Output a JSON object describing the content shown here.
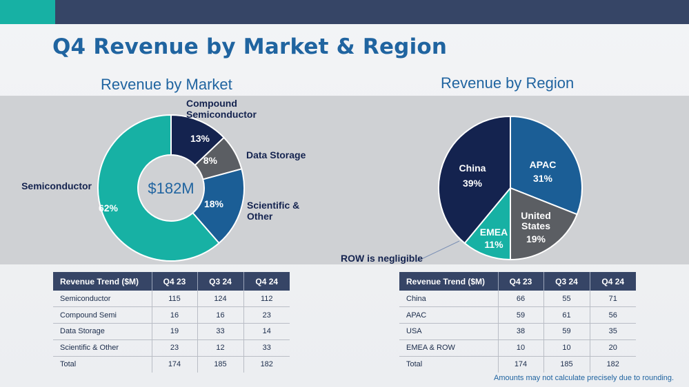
{
  "slide": {
    "title": "Q4 Revenue by Market & Region",
    "footnote": "Amounts may not calculate precisely due to rounding."
  },
  "chart_data": [
    {
      "type": "pie",
      "variant": "donut",
      "title": "Revenue by Market",
      "center_label": "$182M",
      "slices": [
        {
          "label": "Compound Semiconductor",
          "value": 13,
          "display": "13%",
          "color": "#14234f"
        },
        {
          "label": "Data Storage",
          "value": 8,
          "display": "8%",
          "color": "#5b5e63"
        },
        {
          "label": "Scientific & Other",
          "value": 18,
          "display": "18%",
          "color": "#1b5e96"
        },
        {
          "label": "Semiconductor",
          "value": 62,
          "display": "62%",
          "color": "#17b1a4"
        }
      ]
    },
    {
      "type": "pie",
      "title": "Revenue by Region",
      "slices": [
        {
          "label": "APAC",
          "value": 31,
          "display": "31%",
          "color": "#1b5e96"
        },
        {
          "label": "United States",
          "value": 19,
          "display": "19%",
          "color": "#5b5e63"
        },
        {
          "label": "EMEA",
          "value": 11,
          "display": "11%",
          "color": "#17b1a4"
        },
        {
          "label": "China",
          "value": 39,
          "display": "39%",
          "color": "#14234f"
        }
      ],
      "annotation": "ROW is negligible"
    },
    {
      "type": "table",
      "columns": [
        "Revenue Trend ($M)",
        "Q4 23",
        "Q3 24",
        "Q4 24"
      ],
      "rows": [
        [
          "Semiconductor",
          "115",
          "124",
          "112"
        ],
        [
          "Compound Semi",
          "16",
          "16",
          "23"
        ],
        [
          "Data Storage",
          "19",
          "33",
          "14"
        ],
        [
          "Scientific & Other",
          "23",
          "12",
          "33"
        ],
        [
          "Total",
          "174",
          "185",
          "182"
        ]
      ]
    },
    {
      "type": "table",
      "columns": [
        "Revenue Trend ($M)",
        "Q4 23",
        "Q3 24",
        "Q4 24"
      ],
      "rows": [
        [
          "China",
          "66",
          "55",
          "71"
        ],
        [
          "APAC",
          "59",
          "61",
          "56"
        ],
        [
          "USA",
          "38",
          "59",
          "35"
        ],
        [
          "EMEA & ROW",
          "10",
          "10",
          "20"
        ],
        [
          "Total",
          "174",
          "185",
          "182"
        ]
      ]
    }
  ]
}
